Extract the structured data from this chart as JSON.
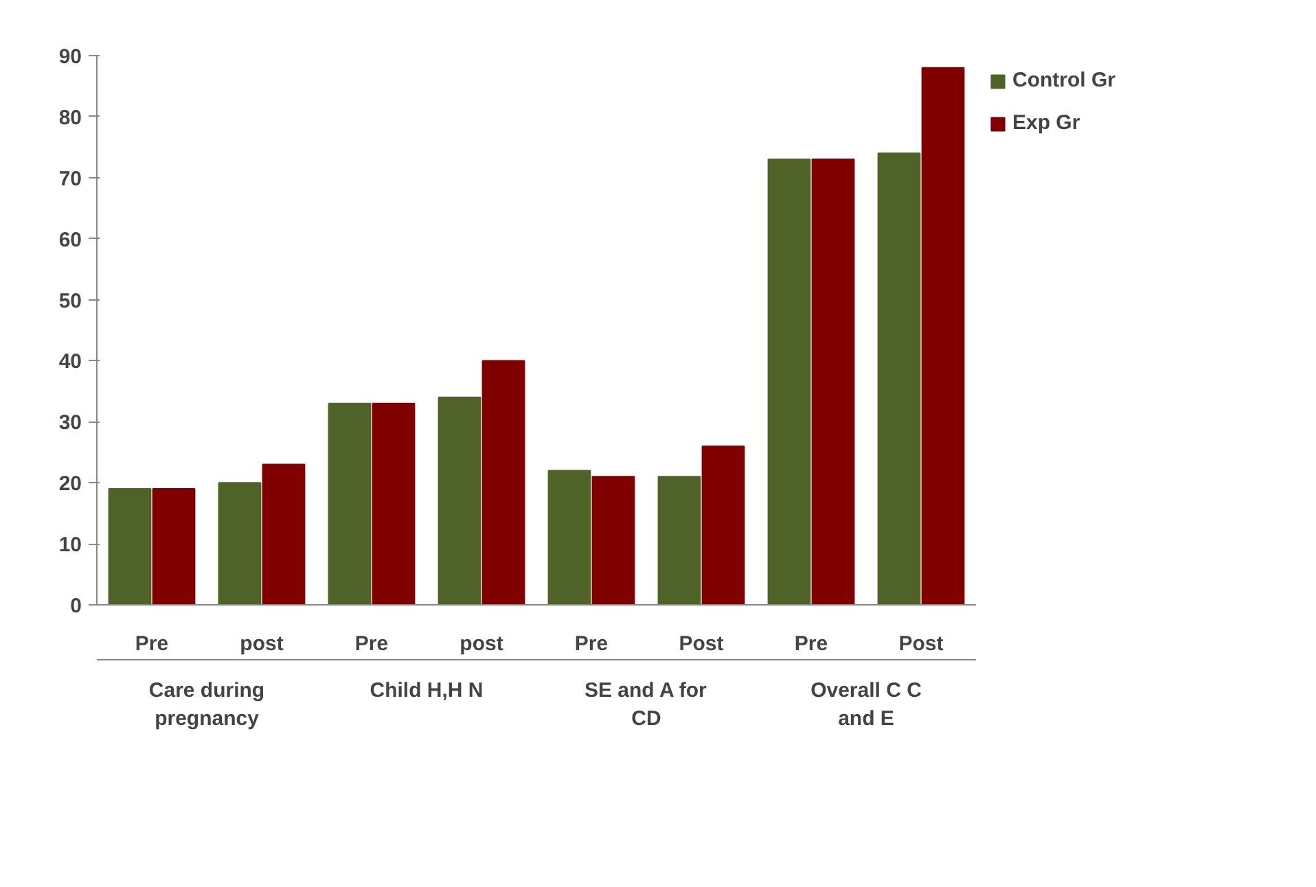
{
  "chart_data": {
    "type": "bar",
    "categories": [
      "Pre",
      "post",
      "Pre",
      "post",
      "Pre",
      "Post",
      "Pre",
      "Post"
    ],
    "series": [
      {
        "name": "Control Gr",
        "color": "#4f6228",
        "values": [
          19,
          20,
          33,
          34,
          22,
          21,
          73,
          74
        ]
      },
      {
        "name": "Exp Gr",
        "color": "#800000",
        "values": [
          19,
          23,
          33,
          40,
          21,
          26,
          73,
          88
        ]
      }
    ],
    "annotations": [
      "Care during pregnancy",
      "Child H,H N",
      "SE and A for CD",
      "Overall C C and E"
    ],
    "ylim": [
      0,
      90
    ],
    "yticks": [
      0,
      10,
      20,
      30,
      40,
      50,
      60,
      70,
      80,
      90
    ],
    "grid": false,
    "legend": "top right"
  }
}
